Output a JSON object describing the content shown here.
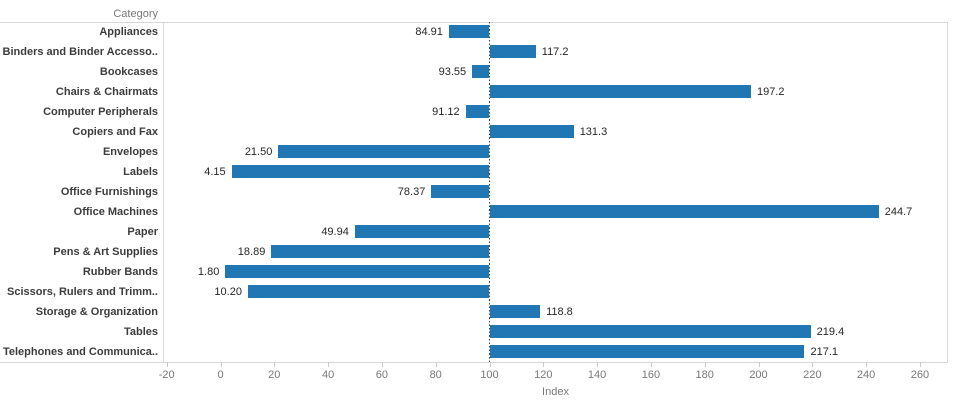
{
  "chart_data": {
    "type": "bar",
    "orientation": "horizontal",
    "title": "",
    "column_header": "Category",
    "xlabel": "Index",
    "categories": [
      "Appliances",
      "Binders and Binder Accesso..",
      "Bookcases",
      "Chairs & Chairmats",
      "Computer Peripherals",
      "Copiers and Fax",
      "Envelopes",
      "Labels",
      "Office Furnishings",
      "Office Machines",
      "Paper",
      "Pens & Art Supplies",
      "Rubber Bands",
      "Scissors, Rulers and Trimm..",
      "Storage & Organization",
      "Tables",
      "Telephones and Communica.."
    ],
    "values": [
      84.91,
      117.2,
      93.55,
      197.2,
      91.12,
      131.3,
      21.5,
      4.15,
      78.37,
      244.7,
      49.94,
      18.89,
      1.8,
      10.2,
      118.8,
      219.4,
      217.1
    ],
    "value_labels": [
      "84.91",
      "117.2",
      "93.55",
      "197.2",
      "91.12",
      "131.3",
      "21.50",
      "4.15",
      "78.37",
      "244.7",
      "49.94",
      "18.89",
      "1.80",
      "10.20",
      "118.8",
      "219.4",
      "217.1"
    ],
    "baseline": 100,
    "reference_line": 100,
    "axis": {
      "min": -21.4,
      "max": 270.4,
      "ticks": [
        -20,
        0,
        20,
        40,
        60,
        80,
        100,
        120,
        140,
        160,
        180,
        200,
        220,
        240,
        260
      ],
      "tick_step": 20
    },
    "grid": false,
    "legend": false,
    "bar_color": "#2077b4"
  }
}
